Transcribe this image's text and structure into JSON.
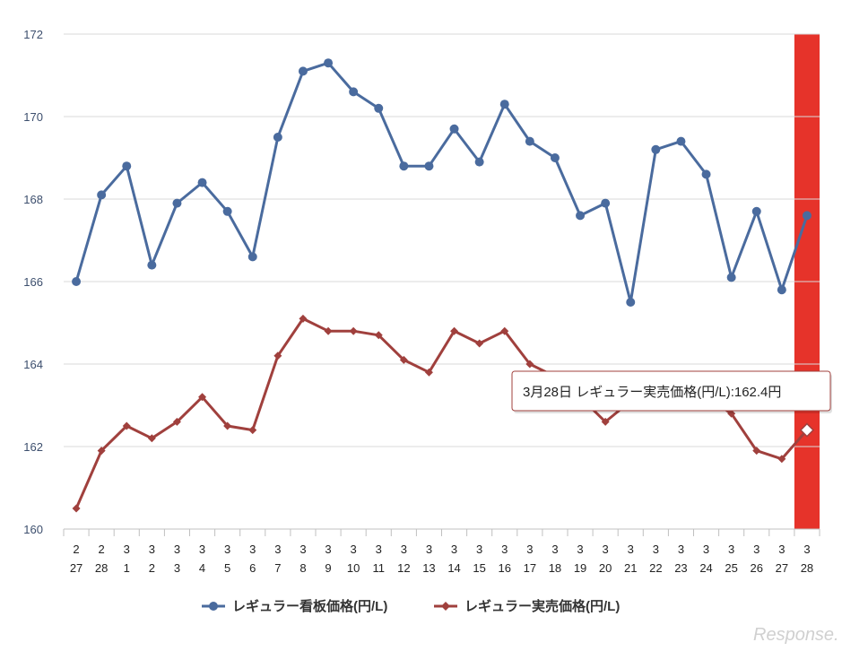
{
  "chart_data": {
    "type": "line",
    "categories": [
      [
        "2",
        "27"
      ],
      [
        "2",
        "28"
      ],
      [
        "3",
        "1"
      ],
      [
        "3",
        "2"
      ],
      [
        "3",
        "3"
      ],
      [
        "3",
        "4"
      ],
      [
        "3",
        "5"
      ],
      [
        "3",
        "6"
      ],
      [
        "3",
        "7"
      ],
      [
        "3",
        "8"
      ],
      [
        "3",
        "9"
      ],
      [
        "3",
        "10"
      ],
      [
        "3",
        "11"
      ],
      [
        "3",
        "12"
      ],
      [
        "3",
        "13"
      ],
      [
        "3",
        "14"
      ],
      [
        "3",
        "15"
      ],
      [
        "3",
        "16"
      ],
      [
        "3",
        "17"
      ],
      [
        "3",
        "18"
      ],
      [
        "3",
        "19"
      ],
      [
        "3",
        "20"
      ],
      [
        "3",
        "21"
      ],
      [
        "3",
        "22"
      ],
      [
        "3",
        "23"
      ],
      [
        "3",
        "24"
      ],
      [
        "3",
        "25"
      ],
      [
        "3",
        "26"
      ],
      [
        "3",
        "27"
      ],
      [
        "3",
        "28"
      ]
    ],
    "series": [
      {
        "name": "レギュラー看板価格(円/L)",
        "color": "#4a6b9e",
        "marker": "circle",
        "values": [
          166.0,
          168.1,
          168.8,
          166.4,
          167.9,
          168.4,
          167.7,
          166.6,
          169.5,
          171.1,
          171.3,
          170.6,
          170.2,
          168.8,
          168.8,
          169.7,
          168.9,
          170.3,
          169.4,
          169.0,
          167.6,
          167.9,
          165.5,
          169.2,
          169.4,
          168.6,
          166.1,
          167.7,
          165.8,
          167.6
        ]
      },
      {
        "name": "レギュラー実売価格(円/L)",
        "color": "#a0403d",
        "marker": "diamond",
        "values": [
          160.5,
          161.9,
          162.5,
          162.2,
          162.6,
          163.2,
          162.5,
          162.4,
          164.2,
          165.1,
          164.8,
          164.8,
          164.7,
          164.1,
          163.8,
          164.8,
          164.5,
          164.8,
          164.0,
          163.7,
          163.2,
          162.6,
          163.1,
          163.5,
          163.4,
          163.2,
          162.8,
          161.9,
          161.7,
          162.4
        ]
      }
    ],
    "ylim": [
      160,
      172
    ],
    "yticks": [
      160,
      162,
      164,
      166,
      168,
      170,
      172
    ],
    "grid": true,
    "legend_position": "bottom-center",
    "highlight": {
      "index": 29,
      "color": "#e6332a"
    },
    "tooltip": {
      "text": "3月28日 レギュラー実売価格(円/L):162.4円",
      "series_index": 1,
      "point_index": 29
    }
  },
  "watermark": "Response."
}
